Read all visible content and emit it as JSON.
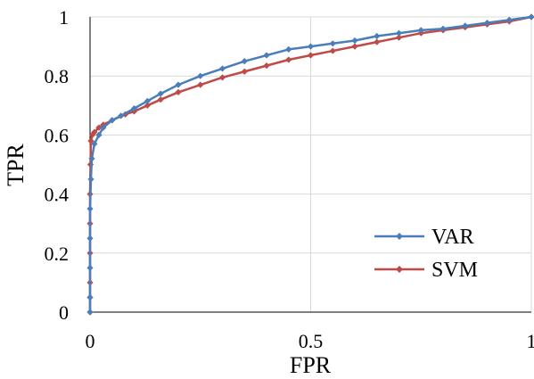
{
  "chart_data": {
    "type": "line",
    "title": "",
    "xlabel": "FPR",
    "ylabel": "TPR",
    "xlim": [
      0,
      1
    ],
    "ylim": [
      0,
      1
    ],
    "x_ticks": [
      "0",
      "0.5",
      "1"
    ],
    "y_ticks": [
      "0",
      "0.2",
      "0.4",
      "0.6",
      "0.8",
      "1"
    ],
    "grid": true,
    "legend_position": "lower-right",
    "series": [
      {
        "name": "VAR",
        "color": "#4a7ebb",
        "marker": "diamond",
        "points": [
          [
            0,
            0
          ],
          [
            0,
            0.05
          ],
          [
            0,
            0.15
          ],
          [
            0,
            0.25
          ],
          [
            0,
            0.35
          ],
          [
            0.002,
            0.45
          ],
          [
            0.004,
            0.52
          ],
          [
            0.01,
            0.57
          ],
          [
            0.02,
            0.6
          ],
          [
            0.03,
            0.625
          ],
          [
            0.05,
            0.65
          ],
          [
            0.07,
            0.665
          ],
          [
            0.1,
            0.69
          ],
          [
            0.13,
            0.715
          ],
          [
            0.16,
            0.74
          ],
          [
            0.2,
            0.77
          ],
          [
            0.25,
            0.8
          ],
          [
            0.3,
            0.825
          ],
          [
            0.35,
            0.85
          ],
          [
            0.4,
            0.87
          ],
          [
            0.45,
            0.89
          ],
          [
            0.5,
            0.9
          ],
          [
            0.55,
            0.91
          ],
          [
            0.6,
            0.92
          ],
          [
            0.65,
            0.935
          ],
          [
            0.7,
            0.945
          ],
          [
            0.75,
            0.955
          ],
          [
            0.8,
            0.96
          ],
          [
            0.85,
            0.97
          ],
          [
            0.9,
            0.98
          ],
          [
            0.95,
            0.99
          ],
          [
            1,
            1
          ]
        ]
      },
      {
        "name": "SVM",
        "color": "#be4b48",
        "marker": "diamond",
        "points": [
          [
            0,
            0
          ],
          [
            0,
            0.05
          ],
          [
            0,
            0.1
          ],
          [
            0,
            0.2
          ],
          [
            0,
            0.3
          ],
          [
            0,
            0.4
          ],
          [
            0.001,
            0.5
          ],
          [
            0.002,
            0.58
          ],
          [
            0.005,
            0.6
          ],
          [
            0.01,
            0.61
          ],
          [
            0.02,
            0.625
          ],
          [
            0.03,
            0.635
          ],
          [
            0.05,
            0.65
          ],
          [
            0.08,
            0.67
          ],
          [
            0.1,
            0.68
          ],
          [
            0.13,
            0.7
          ],
          [
            0.16,
            0.72
          ],
          [
            0.2,
            0.745
          ],
          [
            0.25,
            0.77
          ],
          [
            0.3,
            0.795
          ],
          [
            0.35,
            0.815
          ],
          [
            0.4,
            0.835
          ],
          [
            0.45,
            0.855
          ],
          [
            0.5,
            0.87
          ],
          [
            0.55,
            0.885
          ],
          [
            0.6,
            0.9
          ],
          [
            0.65,
            0.915
          ],
          [
            0.7,
            0.93
          ],
          [
            0.75,
            0.945
          ],
          [
            0.8,
            0.955
          ],
          [
            0.85,
            0.965
          ],
          [
            0.9,
            0.975
          ],
          [
            0.95,
            0.985
          ],
          [
            1,
            1
          ]
        ]
      }
    ]
  }
}
